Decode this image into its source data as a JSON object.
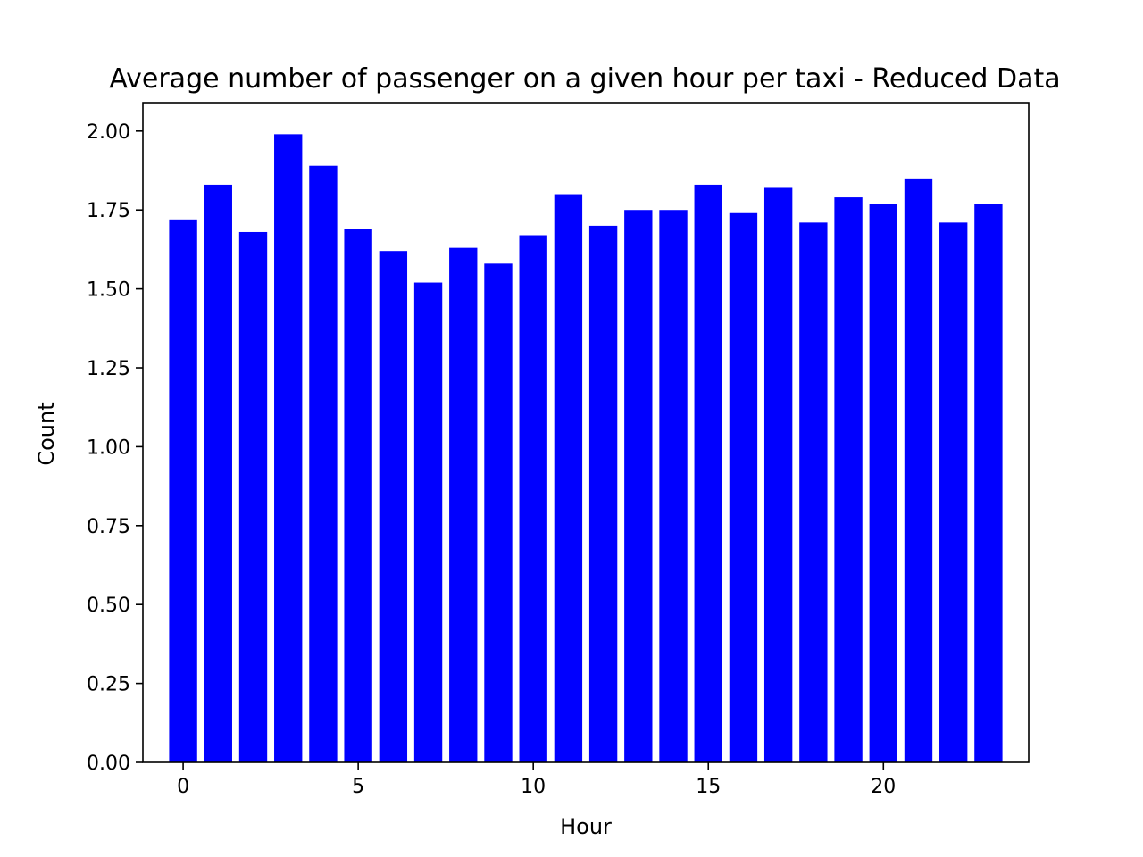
{
  "chart_data": {
    "type": "bar",
    "title": "Average number of passenger on a given hour per taxi - Reduced Data",
    "xlabel": "Hour",
    "ylabel": "Count",
    "x": [
      0,
      1,
      2,
      3,
      4,
      5,
      6,
      7,
      8,
      9,
      10,
      11,
      12,
      13,
      14,
      15,
      16,
      17,
      18,
      19,
      20,
      21,
      22,
      23
    ],
    "values": [
      1.72,
      1.83,
      1.68,
      1.99,
      1.89,
      1.69,
      1.62,
      1.52,
      1.63,
      1.58,
      1.67,
      1.8,
      1.7,
      1.75,
      1.75,
      1.83,
      1.74,
      1.82,
      1.71,
      1.79,
      1.77,
      1.85,
      1.71,
      1.77
    ],
    "xlim": [
      -1.15,
      24.15
    ],
    "ylim": [
      0,
      2.09
    ],
    "xticks": [
      0,
      5,
      10,
      15,
      20
    ],
    "xtick_labels": [
      "0",
      "5",
      "10",
      "15",
      "20"
    ],
    "yticks": [
      0,
      0.25,
      0.5,
      0.75,
      1.0,
      1.25,
      1.5,
      1.75,
      2.0
    ],
    "ytick_labels": [
      "0.00",
      "0.25",
      "0.50",
      "0.75",
      "1.00",
      "1.25",
      "1.50",
      "1.75",
      "2.00"
    ],
    "bar_color": "#0000ff",
    "grid": false,
    "legend": false
  }
}
